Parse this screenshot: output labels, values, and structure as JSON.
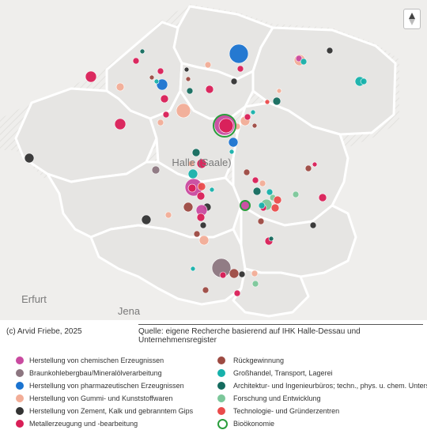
{
  "map": {
    "cities": [
      {
        "name": "Halle (Saale)",
        "x": 255,
        "y": 210
      },
      {
        "name": "Erfurt",
        "x": 43,
        "y": 383
      },
      {
        "name": "Jena",
        "x": 163,
        "y": 398
      }
    ],
    "compass_icon": "north-arrow-icon"
  },
  "credit": "(c) Arvid Friebe, 2025",
  "source": "Quelle: eigene Recherche basierend auf IHK Halle-Dessau und Unternehmensregister",
  "legend": {
    "left": [
      {
        "label": "Herstellung von chemischen Erzeugnissen",
        "color": "#c94aa0"
      },
      {
        "label": "Braunkohlebergbau/Mineralölverarbeitung",
        "color": "#8c7680"
      },
      {
        "label": "Herstellung von pharmazeutischen Erzeugnissen",
        "color": "#1a73d0"
      },
      {
        "label": "Herstellung von Gummi- und Kunststoffwaren",
        "color": "#f2ad97"
      },
      {
        "label": "Herstellung von Zement, Kalk und gebranntem Gips",
        "color": "#333333"
      },
      {
        "label": "Metallerzeugung und -bearbeitung",
        "color": "#d91f57"
      }
    ],
    "right": [
      {
        "label": "Rückgewinnung",
        "color": "#9d4a42"
      },
      {
        "label": "Großhandel, Transport, Lagerei",
        "color": "#17b1ab"
      },
      {
        "label": "Architektur- und Ingenieurbüros; techn., phys. u. chem. Unters.",
        "color": "#146b5e"
      },
      {
        "label": "Forschung und Entwicklung",
        "color": "#7cc79a"
      },
      {
        "label": "Technologie- und Gründerzentren",
        "color": "#ea4b4b"
      },
      {
        "label": "Bioökonomie",
        "color": "#2a9d3c",
        "ring": true
      }
    ]
  }
}
